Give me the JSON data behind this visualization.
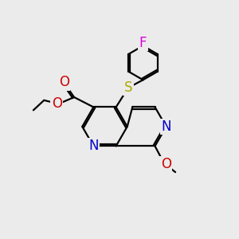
{
  "bg_color": "#ebebeb",
  "atom_colors": {
    "C": "#000000",
    "N": "#0000cc",
    "O": "#cc0000",
    "S": "#aaaa00",
    "F": "#dd00dd",
    "H": "#000000"
  },
  "bond_color": "#000000",
  "bond_width": 1.6,
  "dbo": 0.07,
  "font_size": 12
}
